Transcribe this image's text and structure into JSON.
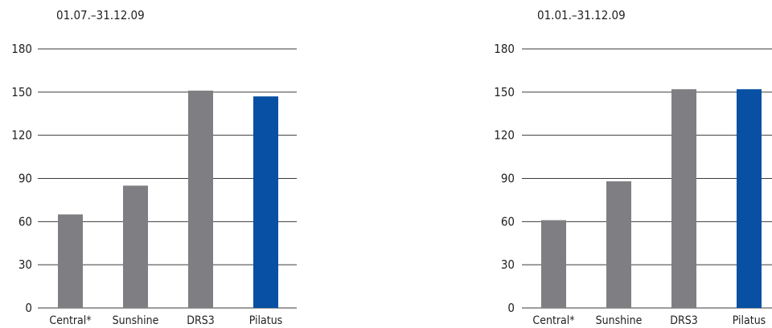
{
  "chart_data": [
    {
      "type": "bar",
      "period_label": "01.07.–31.12.09",
      "categories": [
        "Central*",
        "Sunshine",
        "DRS3",
        "Pilatus"
      ],
      "values": [
        65,
        85,
        151,
        147
      ],
      "bar_colors": [
        "#7f7e82",
        "#7f7e82",
        "#7f7e82",
        "#0750a3"
      ],
      "y_ticks": [
        "0",
        "30",
        "60",
        "90",
        "120",
        "150",
        "180"
      ],
      "ylim": [
        0,
        180
      ],
      "grid": true
    },
    {
      "type": "bar",
      "period_label": "01.01.–31.12.09",
      "categories": [
        "Central*",
        "Sunshine",
        "DRS3",
        "Pilatus"
      ],
      "values": [
        61,
        88,
        152,
        152
      ],
      "bar_colors": [
        "#7f7e82",
        "#7f7e82",
        "#7f7e82",
        "#0750a3"
      ],
      "y_ticks": [
        "0",
        "30",
        "60",
        "90",
        "120",
        "150",
        "180"
      ],
      "ylim": [
        0,
        180
      ],
      "grid": true
    }
  ]
}
